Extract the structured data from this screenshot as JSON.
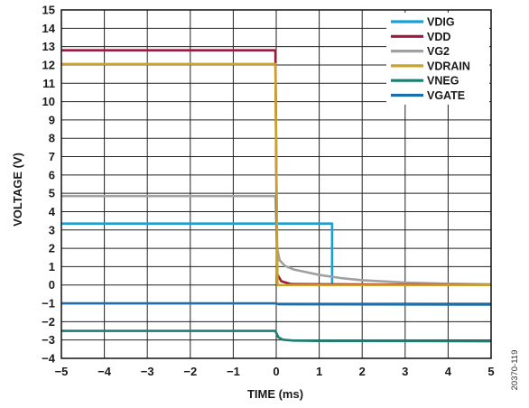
{
  "chart_data": {
    "type": "line",
    "xlabel": "TIME (ms)",
    "ylabel": "VOLTAGE (V)",
    "xlim": [
      -5,
      5
    ],
    "ylim": [
      -4,
      15
    ],
    "xticks": [
      -5,
      -4,
      -3,
      -2,
      -1,
      0,
      1,
      2,
      3,
      4,
      5
    ],
    "yticks": [
      -4,
      -3,
      -2,
      -1,
      0,
      1,
      2,
      3,
      4,
      5,
      6,
      7,
      8,
      9,
      10,
      11,
      12,
      13,
      14,
      15
    ],
    "grid": true,
    "legend_position": "top-right",
    "series": [
      {
        "name": "VDIG",
        "color": "#1aa0d8",
        "x": [
          -5,
          1.3,
          1.3,
          5
        ],
        "y": [
          3.35,
          3.35,
          0.03,
          0.0
        ]
      },
      {
        "name": "VDD",
        "color": "#9c1a3c",
        "x": [
          -5,
          -0.02,
          0.02,
          0.12,
          0.35,
          5
        ],
        "y": [
          12.8,
          12.8,
          0.6,
          0.2,
          0.05,
          0.0
        ]
      },
      {
        "name": "VG2",
        "color": "#a0a0a0",
        "x": [
          -5,
          -0.02,
          0.02,
          0.08,
          0.2,
          0.4,
          0.7,
          1.0,
          1.5,
          2.0,
          3.0,
          4.0,
          5.0
        ],
        "y": [
          4.85,
          4.85,
          2.0,
          1.35,
          1.05,
          0.85,
          0.7,
          0.55,
          0.38,
          0.26,
          0.13,
          0.07,
          0.04
        ]
      },
      {
        "name": "VDRAIN",
        "color": "#c9a227",
        "x": [
          -5,
          -0.02,
          0.03,
          5
        ],
        "y": [
          12.05,
          12.05,
          0.0,
          0.0
        ]
      },
      {
        "name": "VNEG",
        "color": "#1a7f74",
        "x": [
          -5,
          -0.02,
          0.05,
          0.15,
          0.4,
          1.0,
          2.0,
          5.0
        ],
        "y": [
          -2.5,
          -2.5,
          -2.85,
          -2.98,
          -3.03,
          -3.05,
          -3.05,
          -3.07
        ]
      },
      {
        "name": "VGATE",
        "color": "#1b6fae",
        "x": [
          -5,
          0,
          0.05,
          5
        ],
        "y": [
          -1.0,
          -1.0,
          -1.05,
          -1.07
        ]
      }
    ]
  },
  "figure_id": "20370-119"
}
